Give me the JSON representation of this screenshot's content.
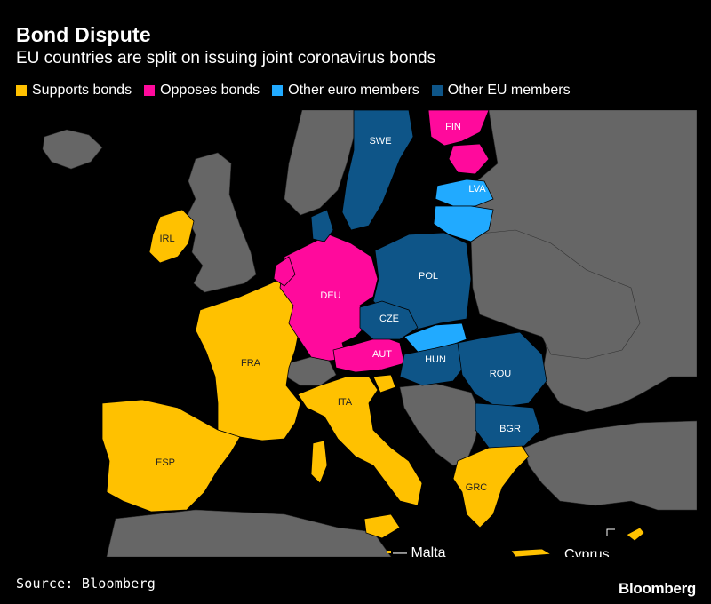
{
  "title": "Bond Dispute",
  "subtitle": "EU countries are split on issuing joint coronavirus bonds",
  "legend": [
    {
      "label": "Supports bonds",
      "color": "#ffc100"
    },
    {
      "label": "Opposes bonds",
      "color": "#ff0a9c"
    },
    {
      "label": "Other euro members",
      "color": "#21aaff"
    },
    {
      "label": "Other EU members",
      "color": "#0e5588"
    }
  ],
  "colors": {
    "supports": "#ffc100",
    "opposes": "#ff0a9c",
    "other_euro": "#21aaff",
    "other_eu": "#0e5588",
    "non_eu": "#666666",
    "sea": "#000000"
  },
  "countries": {
    "IRL": "IRL",
    "FRA": "FRA",
    "ESP": "ESP",
    "ITA": "ITA",
    "GRC": "GRC",
    "DEU": "DEU",
    "AUT": "AUT",
    "FIN": "FIN",
    "LVA": "LVA",
    "SWE": "SWE",
    "POL": "POL",
    "CZE": "CZE",
    "HUN": "HUN",
    "ROU": "ROU",
    "BGR": "BGR"
  },
  "callouts": {
    "malta": "— Malta",
    "cyprus": "Cyprus"
  },
  "source": "Source: Bloomberg",
  "brand": "Bloomberg"
}
